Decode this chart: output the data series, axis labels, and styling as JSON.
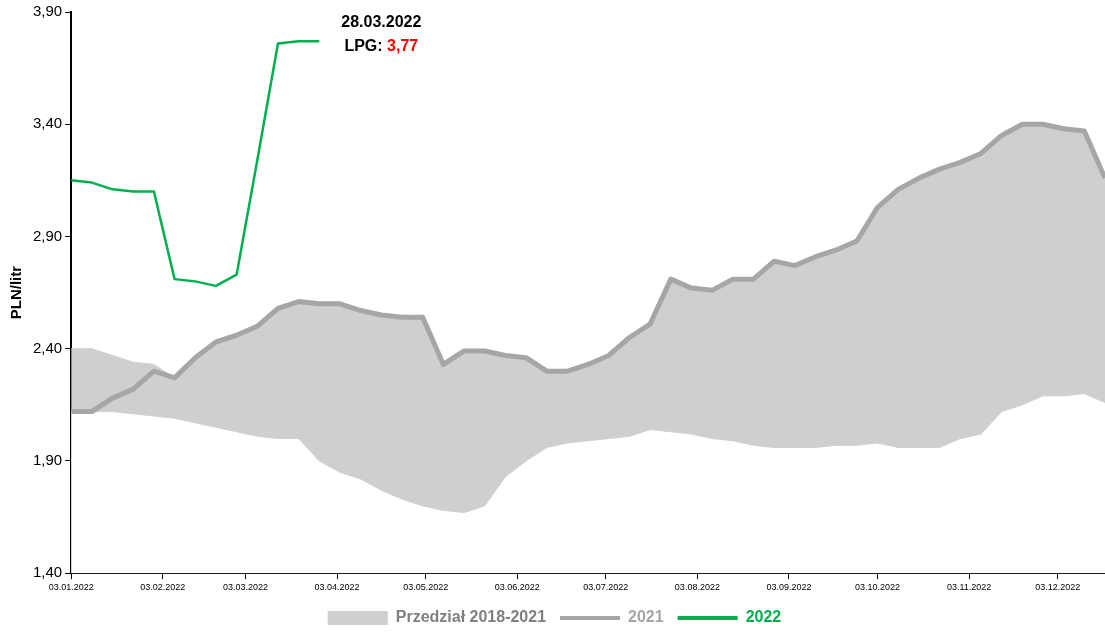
{
  "chart_data": {
    "type": "line",
    "ylabel": "PLN/litr",
    "x": [
      "2022-01-03",
      "2022-01-10",
      "2022-01-17",
      "2022-01-24",
      "2022-01-31",
      "2022-02-07",
      "2022-02-14",
      "2022-02-21",
      "2022-02-28",
      "2022-03-07",
      "2022-03-14",
      "2022-03-21",
      "2022-03-28",
      "2022-04-04",
      "2022-04-11",
      "2022-04-18",
      "2022-04-25",
      "2022-05-02",
      "2022-05-09",
      "2022-05-16",
      "2022-05-23",
      "2022-05-30",
      "2022-06-06",
      "2022-06-13",
      "2022-06-20",
      "2022-06-27",
      "2022-07-04",
      "2022-07-11",
      "2022-07-18",
      "2022-07-25",
      "2022-08-01",
      "2022-08-08",
      "2022-08-15",
      "2022-08-22",
      "2022-08-29",
      "2022-09-05",
      "2022-09-12",
      "2022-09-19",
      "2022-09-26",
      "2022-10-03",
      "2022-10-10",
      "2022-10-17",
      "2022-10-24",
      "2022-10-31",
      "2022-11-07",
      "2022-11-14",
      "2022-11-21",
      "2022-11-28",
      "2022-12-05",
      "2022-12-12",
      "2022-12-19"
    ],
    "series": [
      {
        "type": "area",
        "color": "#ffffff",
        "values": [
          2.12,
          2.12,
          2.12,
          2.11,
          2.1,
          2.09,
          2.07,
          2.05,
          2.03,
          2.01,
          2.0,
          2.0,
          1.9,
          1.85,
          1.82,
          1.77,
          1.73,
          1.7,
          1.68,
          1.67,
          1.7,
          1.83,
          1.9,
          1.96,
          1.98,
          1.99,
          2.0,
          2.01,
          2.04,
          2.03,
          2.02,
          2.0,
          1.99,
          1.97,
          1.96,
          1.96,
          1.96,
          1.97,
          1.97,
          1.98,
          1.96,
          1.96,
          1.96,
          2.0,
          2.02,
          2.12,
          2.15,
          2.19,
          2.19,
          2.2,
          2.16
        ]
      },
      {
        "name": "Przedział 2018-2021",
        "type": "area",
        "color": "#d0cecf",
        "values": [
          2.4,
          2.4,
          2.37,
          2.34,
          2.33,
          2.27,
          2.36,
          2.43,
          2.46,
          2.5,
          2.58,
          2.61,
          2.6,
          2.6,
          2.57,
          2.55,
          2.54,
          2.54,
          2.33,
          2.39,
          2.39,
          2.37,
          2.36,
          2.3,
          2.3,
          2.33,
          2.37,
          2.45,
          2.51,
          2.71,
          2.67,
          2.66,
          2.71,
          2.71,
          2.79,
          2.77,
          2.81,
          2.84,
          2.88,
          3.03,
          3.11,
          3.16,
          3.2,
          3.23,
          3.27,
          3.35,
          3.4,
          3.4,
          3.38,
          3.37,
          3.16
        ]
      },
      {
        "name": "2021",
        "type": "line",
        "color": "#a6a6a6",
        "values": [
          2.12,
          2.12,
          2.18,
          2.22,
          2.3,
          2.27,
          2.36,
          2.43,
          2.46,
          2.5,
          2.58,
          2.61,
          2.6,
          2.6,
          2.57,
          2.55,
          2.54,
          2.54,
          2.33,
          2.39,
          2.39,
          2.37,
          2.36,
          2.3,
          2.3,
          2.33,
          2.37,
          2.45,
          2.51,
          2.71,
          2.67,
          2.66,
          2.71,
          2.71,
          2.79,
          2.77,
          2.81,
          2.84,
          2.88,
          3.03,
          3.11,
          3.16,
          3.2,
          3.23,
          3.27,
          3.35,
          3.4,
          3.4,
          3.38,
          3.37,
          3.16
        ]
      },
      {
        "name": "2022",
        "type": "line",
        "color": "#00b050",
        "x": [
          "2022-01-03",
          "2022-01-10",
          "2022-01-17",
          "2022-01-24",
          "2022-01-31",
          "2022-02-07",
          "2022-02-14",
          "2022-02-21",
          "2022-02-28",
          "2022-03-07",
          "2022-03-14",
          "2022-03-21",
          "2022-03-28"
        ],
        "values": [
          3.15,
          3.14,
          3.11,
          3.1,
          3.1,
          2.71,
          2.7,
          2.68,
          2.73,
          3.24,
          3.76,
          3.77,
          3.77
        ]
      }
    ],
    "annotations": [
      {
        "text": "28.03.2022",
        "x": "2022-03-28",
        "y": 3.77
      },
      {
        "text": "LPG: 3,77",
        "x": "2022-03-28",
        "y": 3.77
      }
    ],
    "xlim": [
      "2022-01-03",
      "2022-12-19"
    ],
    "xticks": [
      {
        "value": "2022-01-03",
        "label": "03.01.2022"
      },
      {
        "value": "2022-02-03",
        "label": "03.02.2022"
      },
      {
        "value": "2022-03-03",
        "label": "03.03.2022"
      },
      {
        "value": "2022-04-03",
        "label": "03.04.2022"
      },
      {
        "value": "2022-05-03",
        "label": "03.05.2022"
      },
      {
        "value": "2022-06-03",
        "label": "03.06.2022"
      },
      {
        "value": "2022-07-03",
        "label": "03.07.2022"
      },
      {
        "value": "2022-08-03",
        "label": "03.08.2022"
      },
      {
        "value": "2022-09-03",
        "label": "03.09.2022"
      },
      {
        "value": "2022-10-03",
        "label": "03.10.2022"
      },
      {
        "value": "2022-11-03",
        "label": "03.11.2022"
      },
      {
        "value": "2022-12-03",
        "label": "03.12.2022"
      }
    ],
    "ylim": [
      1.4,
      3.9
    ],
    "yticks": [
      {
        "value": 1.4,
        "label": "1,40"
      },
      {
        "value": 1.9,
        "label": "1,90"
      },
      {
        "value": 2.4,
        "label": "2,40"
      },
      {
        "value": 2.9,
        "label": "2,90"
      },
      {
        "value": 3.4,
        "label": "3,40"
      },
      {
        "value": 3.9,
        "label": "3,90"
      }
    ],
    "legend": "bottom",
    "marker": "none",
    "line_style": "solid"
  }
}
